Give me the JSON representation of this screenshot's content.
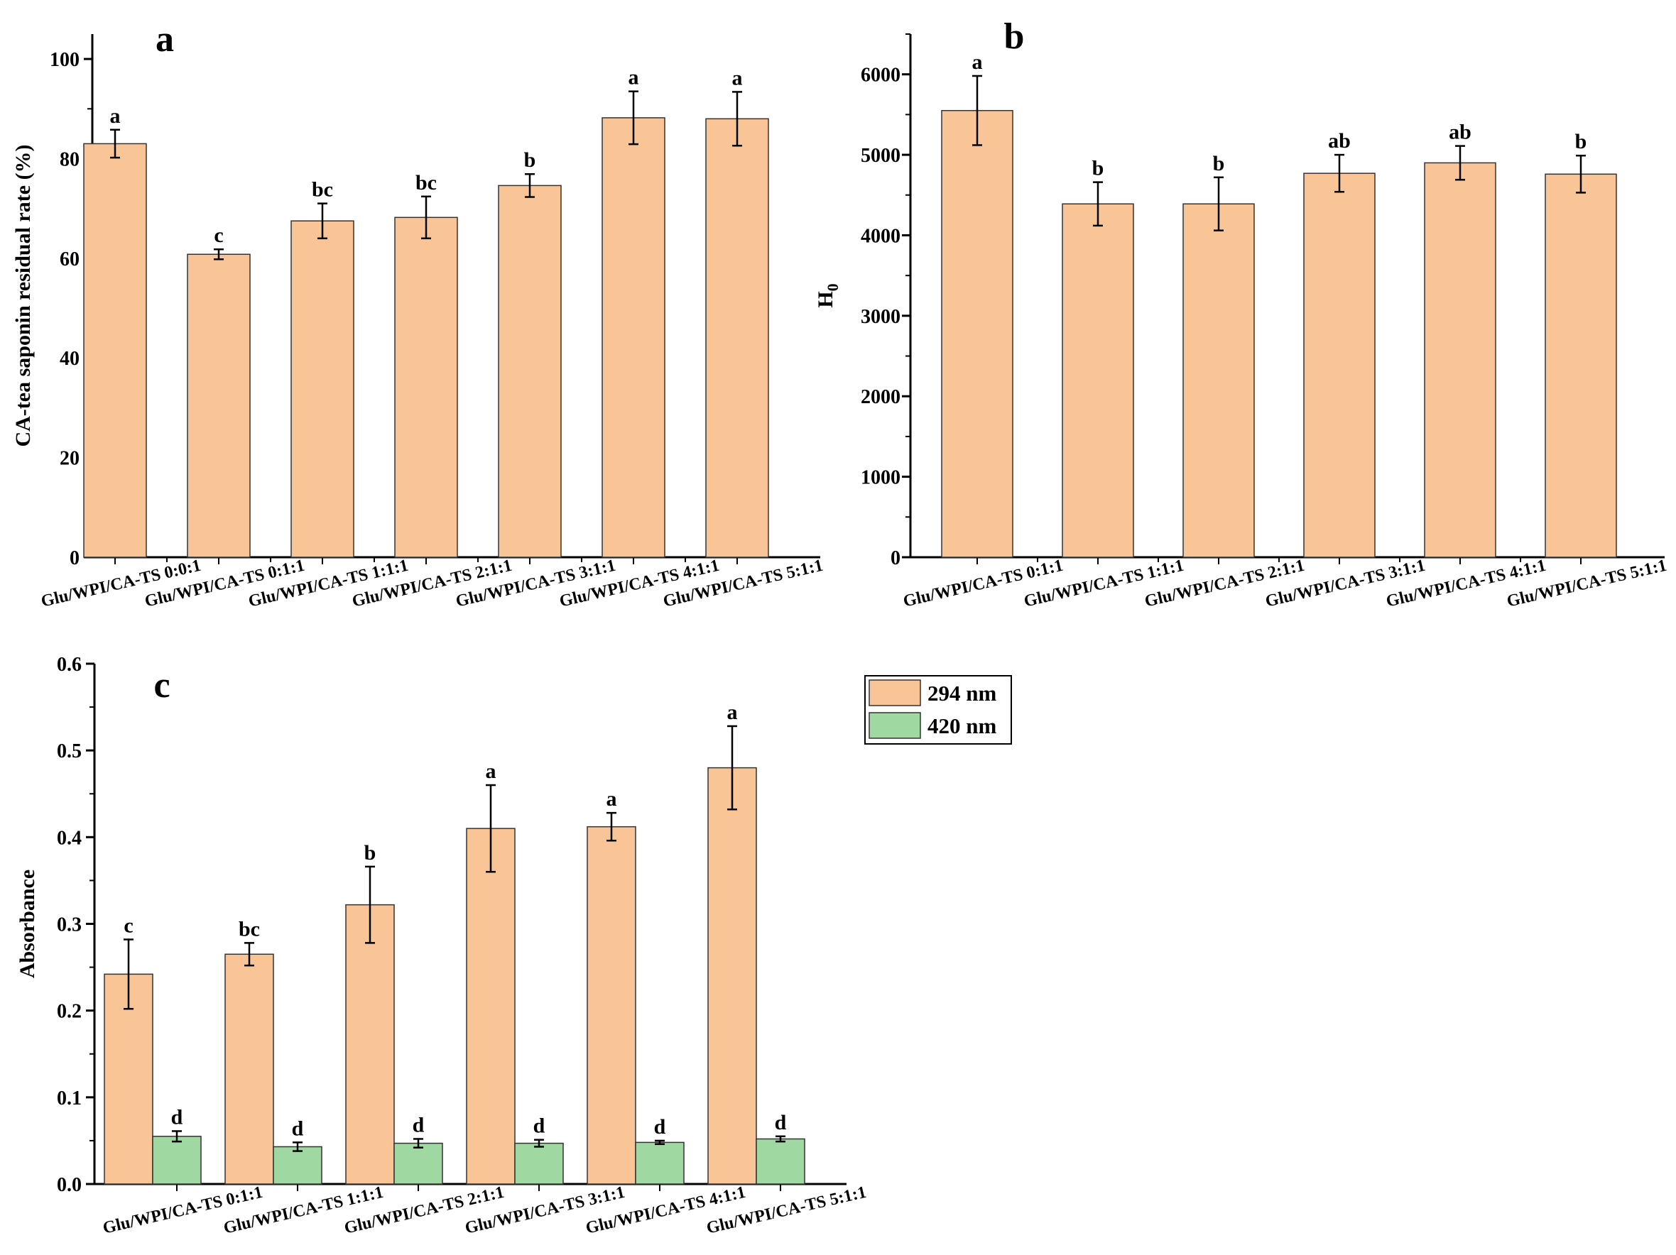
{
  "chart_data": [
    {
      "panel": "a",
      "type": "bar",
      "ylabel": "CA-tea saponin residual rate (%)",
      "ylim": [
        0,
        105
      ],
      "yticks": [
        0,
        20,
        40,
        60,
        80,
        100
      ],
      "categories": [
        "Glu/WPI/CA-TS 0:0:1",
        "Glu/WPI/CA-TS 0:1:1",
        "Glu/WPI/CA-TS 1:1:1",
        "Glu/WPI/CA-TS 2:1:1",
        "Glu/WPI/CA-TS 3:1:1",
        "Glu/WPI/CA-TS 4:1:1",
        "Glu/WPI/CA-TS 5:1:1"
      ],
      "series": [
        {
          "name": "residual rate",
          "color": "#f9c597",
          "values": [
            83,
            60.8,
            67.5,
            68.2,
            74.6,
            88.2,
            88
          ],
          "errors": [
            2.8,
            1.0,
            3.5,
            4.2,
            2.3,
            5.3,
            5.4
          ],
          "letters": [
            "a",
            "c",
            "bc",
            "bc",
            "b",
            "a",
            "a"
          ]
        }
      ]
    },
    {
      "panel": "b",
      "type": "bar",
      "ylabel": "H0",
      "ylim": [
        0,
        6500
      ],
      "yticks": [
        0,
        1000,
        2000,
        3000,
        4000,
        5000,
        6000
      ],
      "categories": [
        "Glu/WPI/CA-TS 0:1:1",
        "Glu/WPI/CA-TS 1:1:1",
        "Glu/WPI/CA-TS 2:1:1",
        "Glu/WPI/CA-TS 3:1:1",
        "Glu/WPI/CA-TS 4:1:1",
        "Glu/WPI/CA-TS 5:1:1"
      ],
      "series": [
        {
          "name": "H0",
          "color": "#f9c597",
          "values": [
            5550,
            4390,
            4390,
            4770,
            4900,
            4760
          ],
          "errors": [
            430,
            270,
            330,
            230,
            210,
            230
          ],
          "letters": [
            "a",
            "b",
            "b",
            "ab",
            "ab",
            "b"
          ]
        }
      ]
    },
    {
      "panel": "c",
      "type": "bar",
      "ylabel": "Absorbance",
      "ylim": [
        0,
        0.6
      ],
      "yticks": [
        0.0,
        0.1,
        0.2,
        0.3,
        0.4,
        0.5,
        0.6
      ],
      "categories": [
        "Glu/WPI/CA-TS 0:1:1",
        "Glu/WPI/CA-TS 1:1:1",
        "Glu/WPI/CA-TS 2:1:1",
        "Glu/WPI/CA-TS 3:1:1",
        "Glu/WPI/CA-TS 4:1:1",
        "Glu/WPI/CA-TS 5:1:1"
      ],
      "legend": "top-right outside",
      "series": [
        {
          "name": "294 nm",
          "color": "#f9c597",
          "values": [
            0.242,
            0.265,
            0.322,
            0.41,
            0.412,
            0.48
          ],
          "errors": [
            0.04,
            0.013,
            0.044,
            0.05,
            0.016,
            0.048
          ],
          "letters": [
            "c",
            "bc",
            "b",
            "a",
            "a",
            "a"
          ]
        },
        {
          "name": "420 nm",
          "color": "#9fd8a1",
          "values": [
            0.055,
            0.043,
            0.047,
            0.047,
            0.048,
            0.052
          ],
          "errors": [
            0.006,
            0.005,
            0.005,
            0.004,
            0.002,
            0.003
          ],
          "letters": [
            "d",
            "d",
            "d",
            "d",
            "d",
            "d"
          ]
        }
      ]
    }
  ]
}
